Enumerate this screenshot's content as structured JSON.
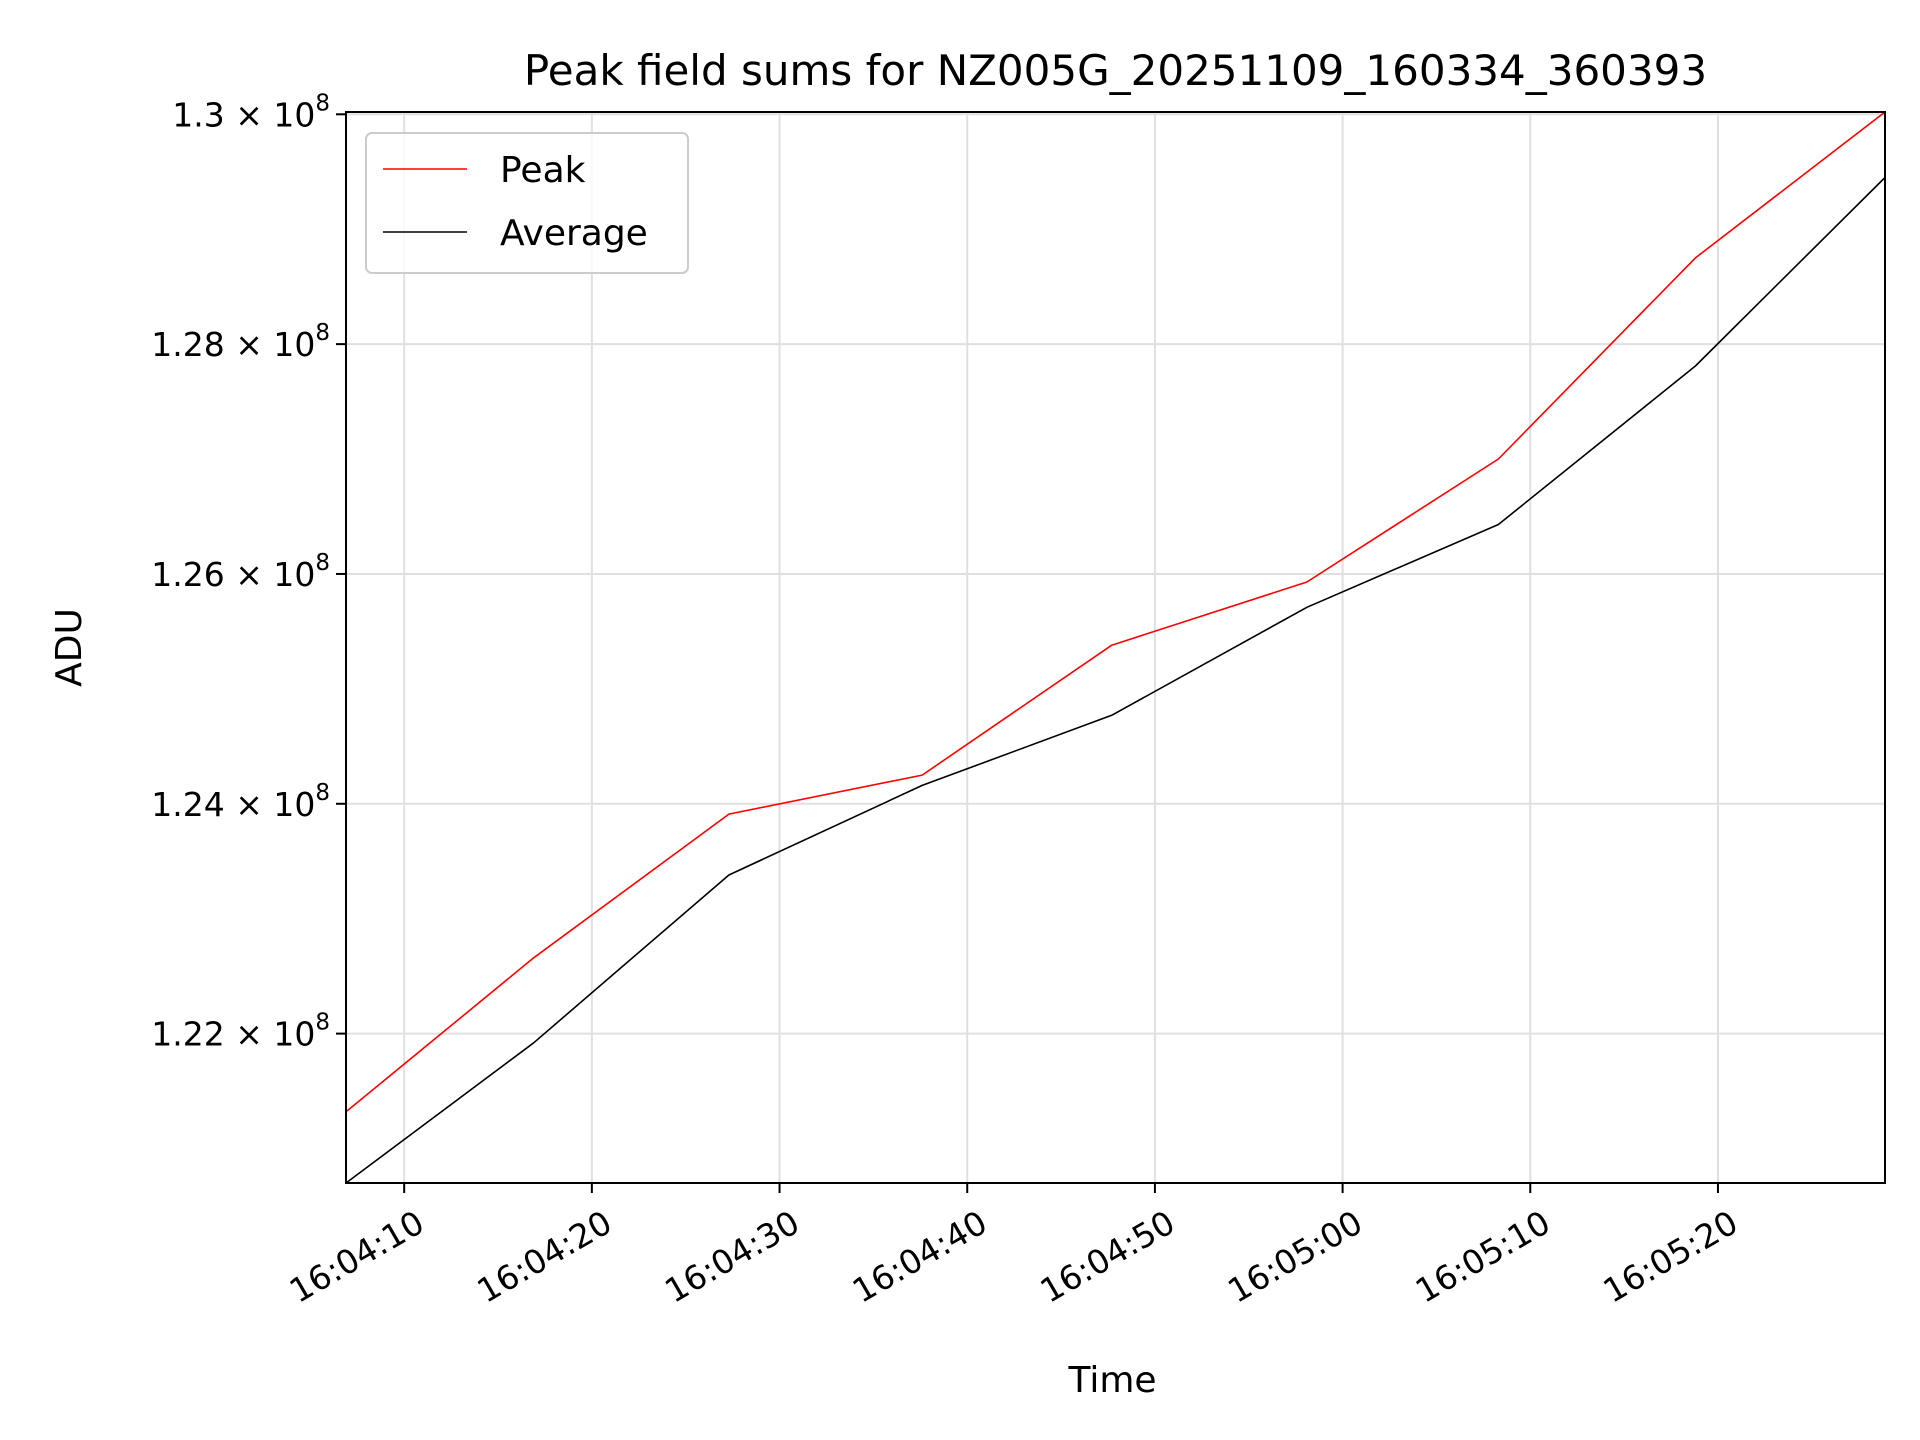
{
  "chart_data": {
    "type": "line",
    "title": "Peak field sums for NZ005G_20251109_160334_360393",
    "xlabel": "Time",
    "ylabel": "ADU",
    "x": [
      "16:04:06.9",
      "16:04:16.9",
      "16:04:27.3",
      "16:04:37.6",
      "16:04:47.7",
      "16:04:58.1",
      "16:05:08.3",
      "16:05:18.8",
      "16:05:28.9"
    ],
    "series": [
      {
        "name": "Peak",
        "color": "#ff0000",
        "values": [
          121320000,
          122660000,
          123910000,
          124250000,
          125380000,
          125930000,
          127000000,
          128750000,
          130020000
        ]
      },
      {
        "name": "Average",
        "color": "#000000",
        "values": [
          120700000,
          121920000,
          123380000,
          124160000,
          124770000,
          125710000,
          126430000,
          127810000,
          129450000
        ]
      }
    ],
    "xlim": [
      "16:04:06.9",
      "16:05:28.9"
    ],
    "ylim": [
      120700000,
      130020000
    ],
    "xticks": [
      {
        "time": "16:04:10",
        "label": "16:04:10"
      },
      {
        "time": "16:04:20",
        "label": "16:04:20"
      },
      {
        "time": "16:04:30",
        "label": "16:04:30"
      },
      {
        "time": "16:04:40",
        "label": "16:04:40"
      },
      {
        "time": "16:04:50",
        "label": "16:04:50"
      },
      {
        "time": "16:05:00",
        "label": "16:05:00"
      },
      {
        "time": "16:05:10",
        "label": "16:05:10"
      },
      {
        "time": "16:05:20",
        "label": "16:05:20"
      }
    ],
    "yticks": [
      {
        "value": 122000000,
        "mantissa": "1.22",
        "exponent": "8"
      },
      {
        "value": 124000000,
        "mantissa": "1.24",
        "exponent": "8"
      },
      {
        "value": 126000000,
        "mantissa": "1.26",
        "exponent": "8"
      },
      {
        "value": 128000000,
        "mantissa": "1.28",
        "exponent": "8"
      },
      {
        "value": 130000000,
        "mantissa": "1.3",
        "exponent": "8"
      }
    ],
    "ytick_multiplier": "× 10",
    "grid": true,
    "legend_position": "top-left"
  }
}
